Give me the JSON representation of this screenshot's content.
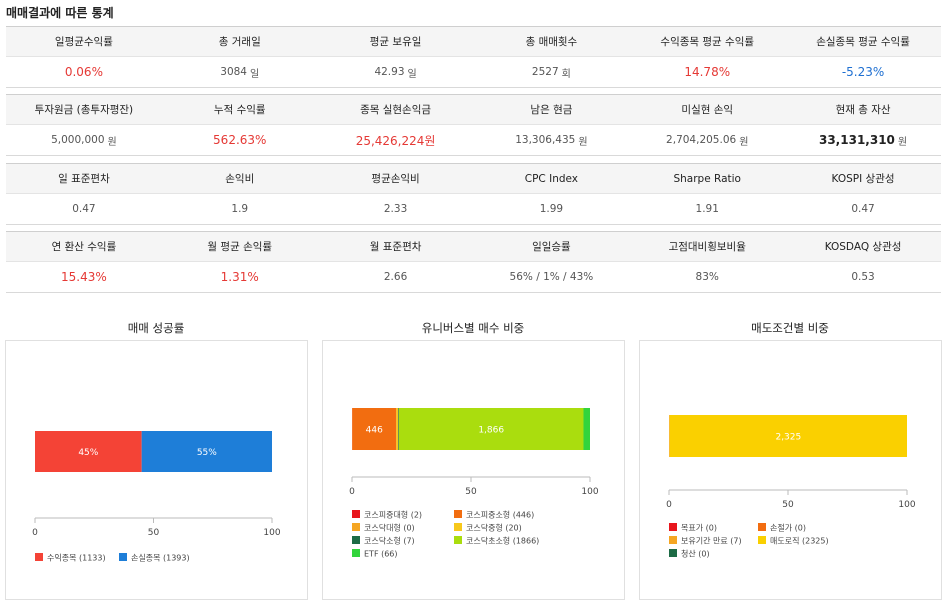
{
  "page_title": "매매결과에 따른 통계",
  "tables": [
    {
      "headers": [
        "일평균수익률",
        "총 거래일",
        "평균 보유일",
        "총 매매횟수",
        "수익종목 평균 수익률",
        "손실종목 평균 수익률"
      ],
      "values": [
        {
          "text": "0.06%",
          "unit": "",
          "style": "red"
        },
        {
          "text": "3084",
          "unit": "일",
          "style": "plain"
        },
        {
          "text": "42.93",
          "unit": "일",
          "style": "plain"
        },
        {
          "text": "2527",
          "unit": "회",
          "style": "plain"
        },
        {
          "text": "14.78%",
          "unit": "",
          "style": "red"
        },
        {
          "text": "-5.23%",
          "unit": "",
          "style": "blue"
        }
      ]
    },
    {
      "headers": [
        "투자원금 (총투자평잔)",
        "누적 수익률",
        "종목 실현손익금",
        "남은 현금",
        "미실현 손익",
        "현재 총 자산"
      ],
      "values": [
        {
          "text": "5,000,000",
          "unit": "원",
          "style": "plain"
        },
        {
          "text": "562.63%",
          "unit": "",
          "style": "red"
        },
        {
          "text": "25,426,224원",
          "unit": "",
          "style": "red"
        },
        {
          "text": "13,306,435",
          "unit": "원",
          "style": "plain"
        },
        {
          "text": "2,704,205.06",
          "unit": "원",
          "style": "plain"
        },
        {
          "text": "33,131,310",
          "unit": "원",
          "style": "bold"
        }
      ]
    },
    {
      "headers": [
        "일 표준편차",
        "손익비",
        "평균손익비",
        "CPC Index",
        "Sharpe Ratio",
        "KOSPI 상관성"
      ],
      "values": [
        {
          "text": "0.47",
          "unit": "",
          "style": "plain"
        },
        {
          "text": "1.9",
          "unit": "",
          "style": "plain"
        },
        {
          "text": "2.33",
          "unit": "",
          "style": "plain"
        },
        {
          "text": "1.99",
          "unit": "",
          "style": "plain"
        },
        {
          "text": "1.91",
          "unit": "",
          "style": "plain"
        },
        {
          "text": "0.47",
          "unit": "",
          "style": "plain"
        }
      ]
    },
    {
      "headers": [
        "연 환산 수익률",
        "월 평균 손익률",
        "월 표준편차",
        "일일승률",
        "고점대비횡보비율",
        "KOSDAQ 상관성"
      ],
      "values": [
        {
          "text": "15.43%",
          "unit": "",
          "style": "red"
        },
        {
          "text": "1.31%",
          "unit": "",
          "style": "red"
        },
        {
          "text": "2.66",
          "unit": "",
          "style": "plain"
        },
        {
          "text": "56% / 1% / 43%",
          "unit": "",
          "style": "plain"
        },
        {
          "text": "83%",
          "unit": "",
          "style": "plain"
        },
        {
          "text": "0.53",
          "unit": "",
          "style": "plain"
        }
      ]
    }
  ],
  "chart_data": [
    {
      "type": "bar",
      "orientation": "horizontal-stacked-100",
      "title": "매매 성공률",
      "xlim": [
        0,
        100
      ],
      "xticks": [
        "0",
        "50",
        "100"
      ],
      "series": [
        {
          "name": "수익종목 (1133)",
          "value": 45,
          "label": "45%",
          "color": "#f44336"
        },
        {
          "name": "손실종목 (1393)",
          "value": 55,
          "label": "55%",
          "color": "#1e7ed8"
        }
      ]
    },
    {
      "type": "bar",
      "orientation": "horizontal-stacked-100",
      "title": "유니버스별 매수 비중",
      "xlim": [
        0,
        100
      ],
      "xticks": [
        "0",
        "50",
        "100"
      ],
      "series": [
        {
          "name": "코스피중대형 (2)",
          "count": 2,
          "label": "",
          "color": "#e8161d"
        },
        {
          "name": "코스피중소형 (446)",
          "count": 446,
          "label": "446",
          "color": "#f26d10"
        },
        {
          "name": "코스닥대형 (0)",
          "count": 0,
          "label": "",
          "color": "#f5a623"
        },
        {
          "name": "코스닥중형 (20)",
          "count": 20,
          "label": "",
          "color": "#f7c81b"
        },
        {
          "name": "코스닥소형 (7)",
          "count": 7,
          "label": "",
          "color": "#1d6b45"
        },
        {
          "name": "코스닥초소형 (1866)",
          "count": 1866,
          "label": "1,866",
          "color": "#aadd0e"
        },
        {
          "name": "ETF (66)",
          "count": 66,
          "label": "",
          "color": "#32d43c"
        }
      ]
    },
    {
      "type": "bar",
      "orientation": "horizontal-stacked-100",
      "title": "매도조건별 비중",
      "xlim": [
        0,
        100
      ],
      "xticks": [
        "0",
        "50",
        "100"
      ],
      "series": [
        {
          "name": "목표가 (0)",
          "count": 0,
          "label": "",
          "color": "#e8161d"
        },
        {
          "name": "손절가 (0)",
          "count": 0,
          "label": "",
          "color": "#f26d10"
        },
        {
          "name": "보유기간 만료 (7)",
          "count": 7,
          "label": "",
          "color": "#f5a623"
        },
        {
          "name": "매도로직 (2325)",
          "count": 2325,
          "label": "2,325",
          "color": "#fad000"
        },
        {
          "name": "청산 (0)",
          "count": 0,
          "label": "",
          "color": "#1d6b45"
        }
      ]
    }
  ]
}
